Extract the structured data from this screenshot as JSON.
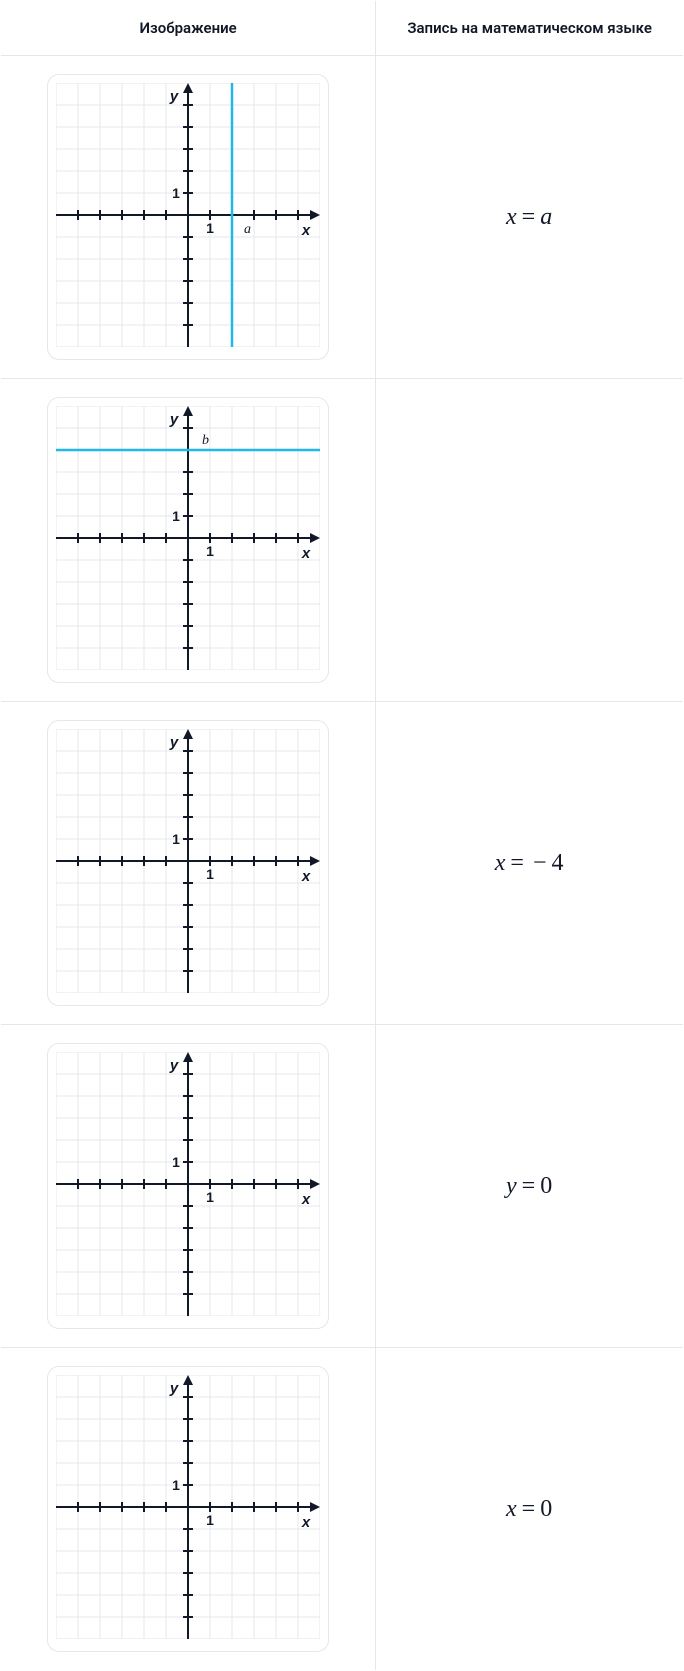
{
  "header": {
    "col1": "Изображение",
    "col2": "Запись на математическом языке"
  },
  "grid_style": {
    "background_color": "#ffffff",
    "grid_color": "#e5e7eb",
    "axis_color": "#111827",
    "axis_width": 2,
    "grid_width": 1,
    "tick_length": 5,
    "line_color": "#22b8e6",
    "line_width": 2.5,
    "label_font": "bold 14px Arial",
    "label_font_italic": "italic 14px Georgia",
    "xlim": [
      -6,
      6
    ],
    "ylim": [
      -6,
      6
    ],
    "cell": 22
  },
  "rows": [
    {
      "chart": {
        "type": "vertical_line",
        "x_at": 2,
        "x_axis_letter": "a",
        "y_label": "y",
        "x_label": "x",
        "unit_ticks": true
      },
      "equation_html": "<span>x</span><span class='op'>=</span><span>a</span>"
    },
    {
      "chart": {
        "type": "horizontal_line",
        "y_at": 4,
        "y_axis_letter": "b",
        "y_label": "y",
        "x_label": "x",
        "unit_ticks": true
      },
      "equation_html": ""
    },
    {
      "chart": {
        "type": "axes_only",
        "y_label": "y",
        "x_label": "x",
        "unit_ticks": true
      },
      "equation_html": "<span>x</span><span class='op'>=</span><span class='op'>−</span><span class='num'>4</span>"
    },
    {
      "chart": {
        "type": "axes_only",
        "y_label": "y",
        "x_label": "x",
        "unit_ticks": true
      },
      "equation_html": "<span>y</span><span class='op'>=</span><span class='num'>0</span>"
    },
    {
      "chart": {
        "type": "axes_only",
        "y_label": "y",
        "x_label": "x",
        "unit_ticks": true
      },
      "equation_html": "<span>x</span><span class='op'>=</span><span class='num'>0</span>"
    }
  ]
}
